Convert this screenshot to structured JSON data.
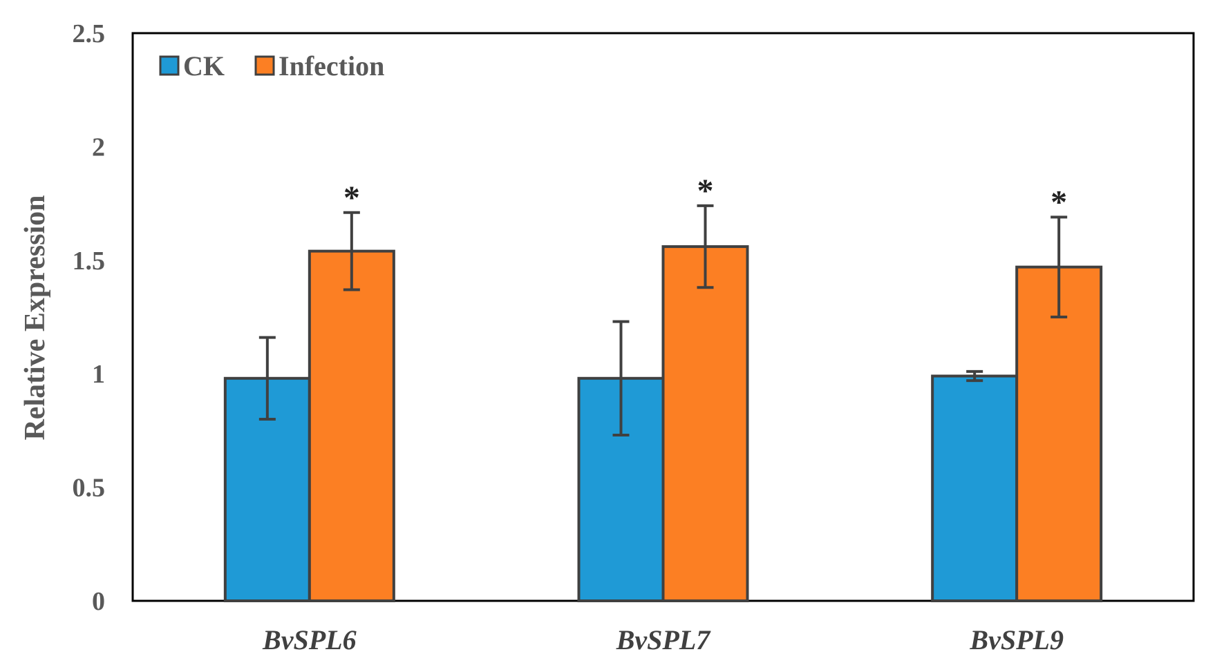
{
  "chart_data": {
    "type": "bar",
    "title": "",
    "xlabel": "",
    "ylabel": "Relative Expression",
    "ylim": [
      0,
      2.5
    ],
    "yticks": [
      "0",
      "0.5",
      "1",
      "1.5",
      "2",
      "2.5"
    ],
    "ytick_values": [
      0,
      0.5,
      1,
      1.5,
      2,
      2.5
    ],
    "categories": [
      "BvSPL6",
      "BvSPL7",
      "BvSPL9"
    ],
    "legend_position": "top-left",
    "series": [
      {
        "name": "CK",
        "color": "#1f9ad6",
        "values": [
          0.98,
          0.98,
          0.99
        ],
        "errors": [
          0.18,
          0.25,
          0.02
        ],
        "significance": [
          "",
          "",
          ""
        ]
      },
      {
        "name": "Infection",
        "color": "#fc7f23",
        "values": [
          1.54,
          1.56,
          1.47
        ],
        "errors": [
          0.17,
          0.18,
          0.22
        ],
        "significance": [
          "*",
          "*",
          "*"
        ]
      }
    ]
  }
}
